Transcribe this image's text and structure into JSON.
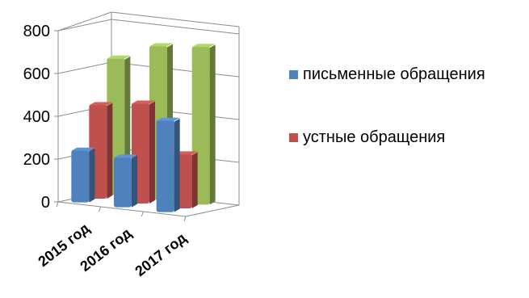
{
  "chart_data": {
    "type": "bar",
    "variant": "3d-column",
    "categories": [
      "2015 год",
      "2016 год",
      "2017 год"
    ],
    "series": [
      {
        "name": "письменные обращения",
        "values": [
          245,
          235,
          430
        ],
        "color": "#4f81bd",
        "in_legend": true
      },
      {
        "name": "устные обращения",
        "values": [
          440,
          470,
          255
        ],
        "color": "#c0504d",
        "in_legend": true
      },
      {
        "name": "",
        "values": [
          640,
          720,
          740
        ],
        "color": "#9bbb59",
        "in_legend": false
      }
    ],
    "ylim": [
      0,
      800
    ],
    "yticks": [
      "0",
      "200",
      "400",
      "600",
      "800"
    ],
    "grid": true,
    "legend_position": "right",
    "title": "",
    "xlabel": "",
    "ylabel": ""
  }
}
